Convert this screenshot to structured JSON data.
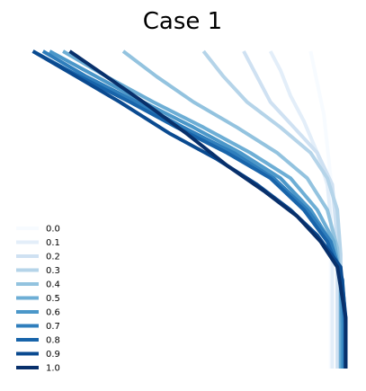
{
  "chart_data": {
    "type": "line",
    "title": "Case 1",
    "xlabel": "",
    "ylabel": "",
    "xlim": [
      -5.0,
      5.0
    ],
    "ylim": [
      0.0,
      5.0
    ],
    "grid": false,
    "axes_visible": false,
    "legend_position": "lower-left",
    "series": [
      {
        "name": "0.0",
        "color": "#f7fbff",
        "x": [
          3.8,
          4.0,
          4.2,
          4.3,
          4.4,
          4.4,
          4.4,
          4.4,
          4.4,
          4.4,
          4.4
        ],
        "y": [
          5.0,
          4.5,
          4.0,
          3.5,
          3.0,
          2.5,
          2.0,
          1.5,
          1.0,
          0.5,
          0.0
        ]
      },
      {
        "name": "0.1",
        "color": "#e3eef9",
        "x": [
          2.6,
          2.9,
          3.2,
          3.6,
          4.0,
          4.3,
          4.4,
          4.45,
          4.45,
          4.45,
          4.45
        ],
        "y": [
          5.0,
          4.7,
          4.3,
          3.9,
          3.4,
          2.9,
          2.4,
          1.8,
          1.2,
          0.6,
          0.0
        ]
      },
      {
        "name": "0.2",
        "color": "#cfe1f2",
        "x": [
          1.8,
          2.2,
          2.6,
          3.3,
          4.0,
          4.45,
          4.55,
          4.6,
          4.6,
          4.6,
          4.6
        ],
        "y": [
          5.0,
          4.6,
          4.2,
          3.8,
          3.4,
          2.9,
          2.3,
          1.8,
          1.2,
          0.6,
          0.0
        ]
      },
      {
        "name": "0.3",
        "color": "#b5d4e9",
        "x": [
          0.6,
          1.2,
          1.9,
          2.9,
          3.8,
          4.3,
          4.6,
          4.7,
          4.7,
          4.7,
          4.7
        ],
        "y": [
          5.0,
          4.6,
          4.2,
          3.8,
          3.4,
          3.0,
          2.5,
          1.8,
          1.2,
          0.6,
          0.0
        ]
      },
      {
        "name": "0.4",
        "color": "#93c3df",
        "x": [
          -1.8,
          -0.8,
          0.3,
          1.6,
          2.8,
          3.7,
          4.3,
          4.6,
          4.7,
          4.7,
          4.7
        ],
        "y": [
          5.0,
          4.6,
          4.2,
          3.8,
          3.4,
          3.0,
          2.5,
          1.9,
          1.3,
          0.6,
          0.0
        ]
      },
      {
        "name": "0.5",
        "color": "#6daed5",
        "x": [
          -3.6,
          -2.3,
          -0.9,
          0.6,
          2.0,
          3.2,
          4.0,
          4.5,
          4.7,
          4.7,
          4.7
        ],
        "y": [
          5.0,
          4.6,
          4.2,
          3.8,
          3.4,
          3.0,
          2.5,
          2.0,
          1.4,
          0.7,
          0.0
        ]
      },
      {
        "name": "0.6",
        "color": "#4b97c9",
        "x": [
          -4.0,
          -2.6,
          -1.2,
          0.3,
          1.7,
          2.9,
          3.8,
          4.4,
          4.7,
          4.75,
          4.75
        ],
        "y": [
          5.0,
          4.6,
          4.2,
          3.8,
          3.4,
          3.0,
          2.5,
          2.0,
          1.4,
          0.7,
          0.0
        ]
      },
      {
        "name": "0.7",
        "color": "#2f7ebc",
        "x": [
          -4.2,
          -2.9,
          -1.4,
          0.0,
          1.5,
          2.7,
          3.7,
          4.4,
          4.75,
          4.8,
          4.8
        ],
        "y": [
          5.0,
          4.6,
          4.2,
          3.8,
          3.4,
          3.0,
          2.5,
          2.0,
          1.4,
          0.7,
          0.0
        ]
      },
      {
        "name": "0.8",
        "color": "#1864aa",
        "x": [
          -4.5,
          -3.1,
          -1.6,
          -0.2,
          1.3,
          2.6,
          3.6,
          4.3,
          4.75,
          4.85,
          4.85
        ],
        "y": [
          5.0,
          4.6,
          4.2,
          3.8,
          3.4,
          3.0,
          2.5,
          2.0,
          1.4,
          0.7,
          0.0
        ]
      },
      {
        "name": "0.9",
        "color": "#0a4a90",
        "x": [
          -4.5,
          -3.2,
          -1.9,
          -0.4,
          1.0,
          2.2,
          3.2,
          4.0,
          4.7,
          4.85,
          4.85
        ],
        "y": [
          5.0,
          4.6,
          4.2,
          3.7,
          3.3,
          2.9,
          2.5,
          2.1,
          1.6,
          0.8,
          0.0
        ]
      },
      {
        "name": "1.0",
        "color": "#08306b",
        "x": [
          -3.4,
          -2.3,
          -1.2,
          0.1,
          1.3,
          2.4,
          3.4,
          4.1,
          4.6,
          4.85,
          4.85
        ],
        "y": [
          5.0,
          4.6,
          4.2,
          3.7,
          3.2,
          2.8,
          2.4,
          2.0,
          1.6,
          0.8,
          0.0
        ]
      }
    ]
  }
}
